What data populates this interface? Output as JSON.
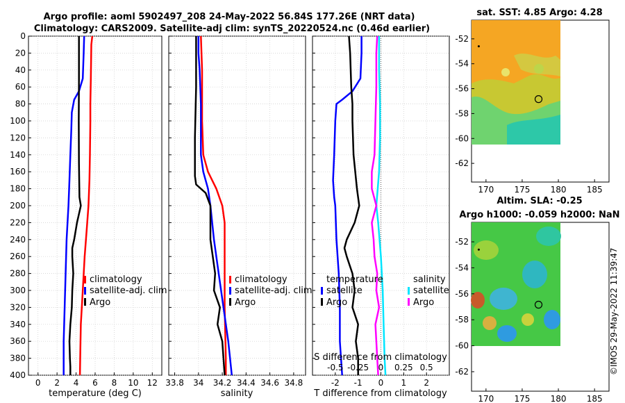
{
  "title": {
    "line1": "Argo profile: aoml 5902497_208 24-May-2022 56.84S 177.26E (NRT data)",
    "line2": "Climatology: CARS2009. Satellite-adj clim: synTS_20220524.nc (0.46d earlier)"
  },
  "watermark": "©IMOS 29-May-2022 11:39:47",
  "colors": {
    "red": "#ff0000",
    "blue": "#0000ff",
    "black": "#000000",
    "cyan": "#00e5ff",
    "magenta": "#ff00ff"
  },
  "chart_data": [
    {
      "type": "line",
      "name": "temperature-profile",
      "xlabel": "temperature (deg C)",
      "xlim": [
        -1,
        13
      ],
      "ylim": [
        0,
        400
      ],
      "xticks": [
        "0",
        "2",
        "4",
        "6",
        "8",
        "10",
        "12"
      ],
      "xtick_values": [
        0,
        2,
        4,
        6,
        8,
        10,
        12
      ],
      "yticks": [
        "0",
        "20",
        "40",
        "60",
        "80",
        "100",
        "120",
        "140",
        "160",
        "180",
        "200",
        "220",
        "240",
        "260",
        "280",
        "300",
        "320",
        "340",
        "360",
        "380",
        "400"
      ],
      "ytick_values": [
        0,
        20,
        40,
        60,
        80,
        100,
        120,
        140,
        160,
        180,
        200,
        220,
        240,
        260,
        280,
        300,
        320,
        340,
        360,
        380,
        400
      ],
      "legend": {
        "position": "right",
        "entries": [
          "climatology",
          "satellite-adj. clim",
          "Argo"
        ]
      },
      "series": [
        {
          "name": "climatology",
          "color": "#ff0000",
          "depth": [
            0,
            10,
            50,
            80,
            100,
            140,
            170,
            200,
            230,
            260,
            300,
            340,
            370,
            400
          ],
          "values": [
            5.7,
            5.6,
            5.55,
            5.5,
            5.5,
            5.45,
            5.4,
            5.3,
            5.1,
            4.9,
            4.7,
            4.5,
            4.45,
            4.4
          ]
        },
        {
          "name": "satellite-adj. clim",
          "color": "#0000ff",
          "depth": [
            0,
            20,
            50,
            65,
            75,
            90,
            110,
            140,
            170,
            200,
            240,
            280,
            320,
            360,
            400
          ],
          "values": [
            4.85,
            4.8,
            4.7,
            4.3,
            3.8,
            3.55,
            3.5,
            3.4,
            3.3,
            3.2,
            3.0,
            2.9,
            2.8,
            2.7,
            2.7
          ]
        },
        {
          "name": "Argo",
          "color": "#000000",
          "depth": [
            0,
            20,
            50,
            100,
            150,
            190,
            200,
            220,
            240,
            250,
            260,
            280,
            300,
            320,
            340,
            360,
            380,
            390,
            400
          ],
          "values": [
            4.3,
            4.3,
            4.3,
            4.28,
            4.3,
            4.35,
            4.5,
            4.1,
            3.8,
            3.6,
            3.6,
            3.7,
            3.6,
            3.55,
            3.4,
            3.3,
            3.35,
            3.4,
            3.4
          ]
        }
      ]
    },
    {
      "type": "line",
      "name": "salinity-profile",
      "xlabel": "salinity",
      "xlim": [
        33.75,
        34.9
      ],
      "ylim": [
        0,
        400
      ],
      "xticks": [
        "33.8",
        "34",
        "34.2",
        "34.4",
        "34.6",
        "34.8"
      ],
      "xtick_values": [
        33.8,
        34.0,
        34.2,
        34.4,
        34.6,
        34.8
      ],
      "legend": {
        "position": "right",
        "entries": [
          "climatology",
          "satellite-adj. clim",
          "Argo"
        ]
      },
      "series": [
        {
          "name": "climatology",
          "color": "#ff0000",
          "depth": [
            0,
            40,
            60,
            100,
            140,
            160,
            180,
            200,
            220,
            260,
            320,
            380,
            400
          ],
          "values": [
            34.02,
            34.03,
            34.03,
            34.03,
            34.04,
            34.08,
            34.15,
            34.2,
            34.22,
            34.22,
            34.22,
            34.23,
            34.23
          ]
        },
        {
          "name": "satellite-adj. clim",
          "color": "#0000ff",
          "depth": [
            0,
            20,
            40,
            80,
            120,
            140,
            160,
            180,
            200,
            240,
            280,
            320,
            360,
            400
          ],
          "values": [
            34.0,
            34.0,
            34.01,
            34.02,
            34.02,
            34.02,
            34.04,
            34.08,
            34.1,
            34.13,
            34.17,
            34.21,
            34.25,
            34.28
          ]
        },
        {
          "name": "Argo",
          "color": "#000000",
          "depth": [
            0,
            20,
            60,
            120,
            150,
            165,
            175,
            185,
            200,
            220,
            240,
            260,
            280,
            300,
            320,
            340,
            360,
            380,
            400
          ],
          "values": [
            33.98,
            33.98,
            33.98,
            33.97,
            33.97,
            33.97,
            33.98,
            34.06,
            34.1,
            34.1,
            34.1,
            34.12,
            34.14,
            34.13,
            34.18,
            34.16,
            34.2,
            34.21,
            34.22
          ]
        }
      ]
    },
    {
      "type": "line",
      "name": "difference-profile",
      "xlabel": "T difference from climatology",
      "xlabel_top": "S difference from climatology",
      "xlim": [
        -3,
        3
      ],
      "ylim": [
        0,
        400
      ],
      "xticks": [
        "-2",
        "-1",
        "0",
        "1",
        "2"
      ],
      "xtick_values": [
        -2,
        -1,
        0,
        1,
        2
      ],
      "s_xticks": [
        "-0.5",
        "-0.25",
        "0",
        "0.25",
        "0.5"
      ],
      "s_xtick_values": [
        -0.5,
        -0.25,
        0,
        0.25,
        0.5
      ],
      "legend_temperature": {
        "title": "temperature",
        "entries": [
          "satellite",
          "Argo"
        ]
      },
      "legend_salinity": {
        "title": "salinity",
        "entries": [
          "satellite",
          "Argo"
        ]
      },
      "series": [
        {
          "name": "T satellite",
          "color": "#0000ff",
          "units": "T",
          "depth": [
            0,
            20,
            50,
            65,
            75,
            80,
            100,
            140,
            170,
            190,
            200,
            240,
            280,
            320,
            360,
            400
          ],
          "values": [
            -0.85,
            -0.85,
            -0.9,
            -1.25,
            -1.7,
            -1.95,
            -2.0,
            -2.05,
            -2.1,
            -2.05,
            -2.0,
            -1.95,
            -1.85,
            -1.8,
            -1.8,
            -1.7
          ]
        },
        {
          "name": "T Argo",
          "color": "#000000",
          "units": "T",
          "depth": [
            0,
            20,
            60,
            80,
            100,
            140,
            180,
            200,
            220,
            240,
            250,
            260,
            280,
            300,
            320,
            340,
            360,
            380,
            400
          ],
          "values": [
            -1.4,
            -1.35,
            -1.3,
            -1.25,
            -1.25,
            -1.2,
            -1.05,
            -0.95,
            -1.15,
            -1.5,
            -1.6,
            -1.5,
            -1.25,
            -1.15,
            -1.25,
            -1.0,
            -1.1,
            -1.0,
            -1.0
          ]
        },
        {
          "name": "S satellite",
          "color": "#00e5ff",
          "units": "S",
          "depth": [
            0,
            40,
            80,
            120,
            160,
            200,
            220,
            260,
            300,
            340,
            380,
            400
          ],
          "values": [
            -0.02,
            -0.02,
            -0.01,
            -0.01,
            -0.02,
            -0.05,
            -0.03,
            0.0,
            0.02,
            0.03,
            0.04,
            0.05
          ]
        },
        {
          "name": "S Argo",
          "color": "#ff00ff",
          "units": "S",
          "depth": [
            0,
            20,
            60,
            100,
            140,
            160,
            180,
            200,
            220,
            240,
            260,
            280,
            300,
            320,
            340,
            360,
            380,
            400
          ],
          "values": [
            -0.04,
            -0.05,
            -0.05,
            -0.06,
            -0.07,
            -0.1,
            -0.1,
            -0.05,
            -0.1,
            -0.08,
            -0.07,
            -0.04,
            -0.05,
            -0.02,
            -0.06,
            -0.05,
            -0.04,
            -0.03
          ]
        }
      ]
    },
    {
      "type": "heatmap",
      "name": "sst-map",
      "title": "sat. SST: 4.85 Argo: 4.28",
      "xlim": [
        168,
        187
      ],
      "ylim": [
        -63.5,
        -50.5
      ],
      "xticks": [
        "170",
        "175",
        "180",
        "185"
      ],
      "xtick_values": [
        170,
        175,
        180,
        185
      ],
      "yticks": [
        "-52",
        "-54",
        "-56",
        "-58",
        "-60",
        "-62"
      ],
      "ytick_values": [
        -52,
        -54,
        -56,
        -58,
        -60,
        -62
      ],
      "data_extent": {
        "lon": [
          168,
          180
        ],
        "lat": [
          -60,
          -50.5
        ]
      },
      "argo_position": {
        "lon": 177.26,
        "lat": -56.84
      },
      "marker_dot": {
        "lon": 169,
        "lat": -52.6
      }
    },
    {
      "type": "heatmap",
      "name": "sla-map",
      "title": "Altim. SLA: -0.25",
      "title2": "Argo h1000: -0.059 h2000: NaN",
      "xlim": [
        168,
        187
      ],
      "ylim": [
        -63.5,
        -50.5
      ],
      "xticks": [
        "170",
        "175",
        "180",
        "185"
      ],
      "xtick_values": [
        170,
        175,
        180,
        185
      ],
      "yticks": [
        "-52",
        "-54",
        "-56",
        "-58",
        "-60",
        "-62"
      ],
      "ytick_values": [
        -52,
        -54,
        -56,
        -58,
        -60,
        -62
      ],
      "data_extent": {
        "lon": [
          168,
          180
        ],
        "lat": [
          -60,
          -50.5
        ]
      },
      "argo_position": {
        "lon": 177.26,
        "lat": -56.84
      },
      "marker_dot": {
        "lon": 169,
        "lat": -52.6
      }
    }
  ]
}
